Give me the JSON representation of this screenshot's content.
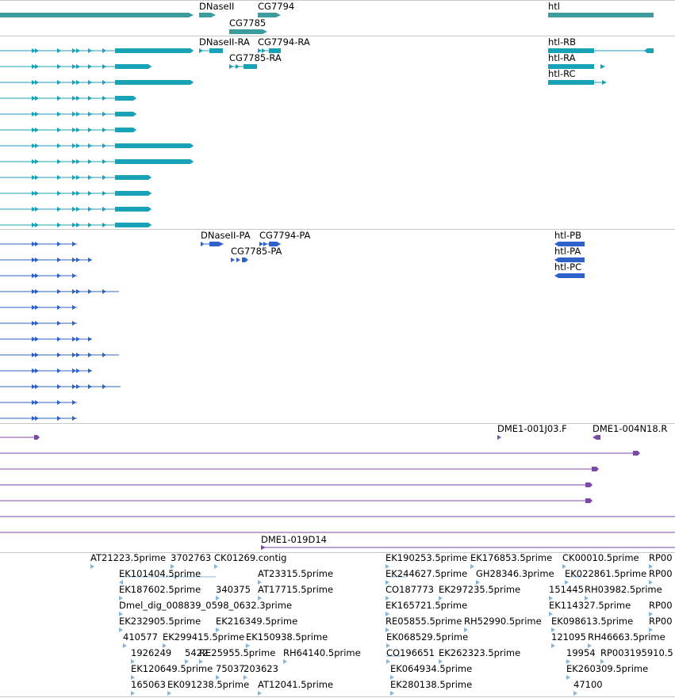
{
  "colors": {
    "gene": "#3c9c9c",
    "transcript": "#18a2b8",
    "protein": "#2f62c8",
    "clone": "#7a4aa6",
    "est": "#86b5dc",
    "separator": "#c8c8c8"
  },
  "gene_track": {
    "labels": {
      "dnaseii": "DNaseII",
      "cg7794": "CG7794",
      "cg7785": "CG7785",
      "htl": "htl"
    }
  },
  "transcript_track": {
    "labels": {
      "dnaseii_ra": "DNaseII-RA",
      "cg7794_ra": "CG7794-RA",
      "cg7785_ra": "CG7785-RA",
      "htl_rb": "htl-RB",
      "htl_ra": "htl-RA",
      "htl_rc": "htl-RC"
    }
  },
  "protein_track": {
    "labels": {
      "dnaseii_pa": "DNaseII-PA",
      "cg7794_pa": "CG7794-PA",
      "cg7785_pa": "CG7785-PA",
      "htl_pb": "htl-PB",
      "htl_pa": "htl-PA",
      "htl_pc": "htl-PC"
    }
  },
  "clone_track": {
    "labels": {
      "c001j03": "DME1-001J03.F",
      "c004n18": "DME1-004N18.R",
      "c019d14": "DME1-019D14"
    }
  },
  "est_track": {
    "labels": [
      "AT21223.5prime",
      "3702763",
      "CK01269.contig",
      "EK101404.5prime",
      "AT23315.5prime",
      "EK187602.5prime",
      "340375",
      "AT17715.5prime",
      "Dmel_dig_008839_0598_0632.3prime",
      "EK232905.5prime",
      "EK216349.5prime",
      "410577",
      "EK299415.5prime",
      "EK150938.5prime",
      "1926249",
      "5422",
      "RE25955.5prime",
      "RH64140.5prime",
      "EK120649.5prime",
      "75037",
      "203623",
      "165063",
      "EK091238.5prime",
      "AT12041.5prime",
      "EK190253.5prime",
      "EK176853.5prime",
      "CK00010.5prime",
      "RP00",
      "EK244627.5prime",
      "GH28346.3prime",
      "EK022861.5prime",
      "RP00",
      "CO187773",
      "EK297235.5prime",
      "151445",
      "RH03982.5prime",
      "EK165721.5prime",
      "EK114327.5prime",
      "RP00",
      "RE05855.5prime",
      "RH52990.5prime",
      "EK098613.5prime",
      "RP00",
      "EK068529.5prime",
      "121095",
      "RH46663.5prime",
      "CO196651",
      "EK262323.5prime",
      "19954",
      "RP003195910.5",
      "EK064934.5prime",
      "EK260309.5prime",
      "EK280138.5prime",
      "47100"
    ]
  }
}
